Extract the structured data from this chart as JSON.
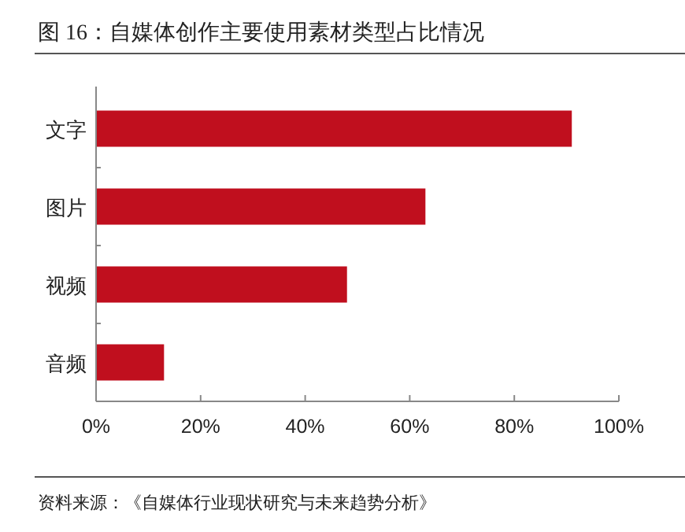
{
  "chart_data": {
    "type": "bar",
    "orientation": "horizontal",
    "title": "图 16：自媒体创作主要使用素材类型占比情况",
    "categories": [
      "文字",
      "图片",
      "视频",
      "音频"
    ],
    "values": [
      91,
      63,
      48,
      13
    ],
    "color": "#c00f1e",
    "xlim": [
      0,
      100
    ],
    "xticks": [
      {
        "value": 0,
        "label": "0%"
      },
      {
        "value": 20,
        "label": "20%"
      },
      {
        "value": 40,
        "label": "40%"
      },
      {
        "value": 60,
        "label": "60%"
      },
      {
        "value": 80,
        "label": "80%"
      },
      {
        "value": 100,
        "label": "100%"
      }
    ],
    "annotations": [
      "资料来源：《自媒体行业现状研究与未来趋势分析》"
    ]
  }
}
